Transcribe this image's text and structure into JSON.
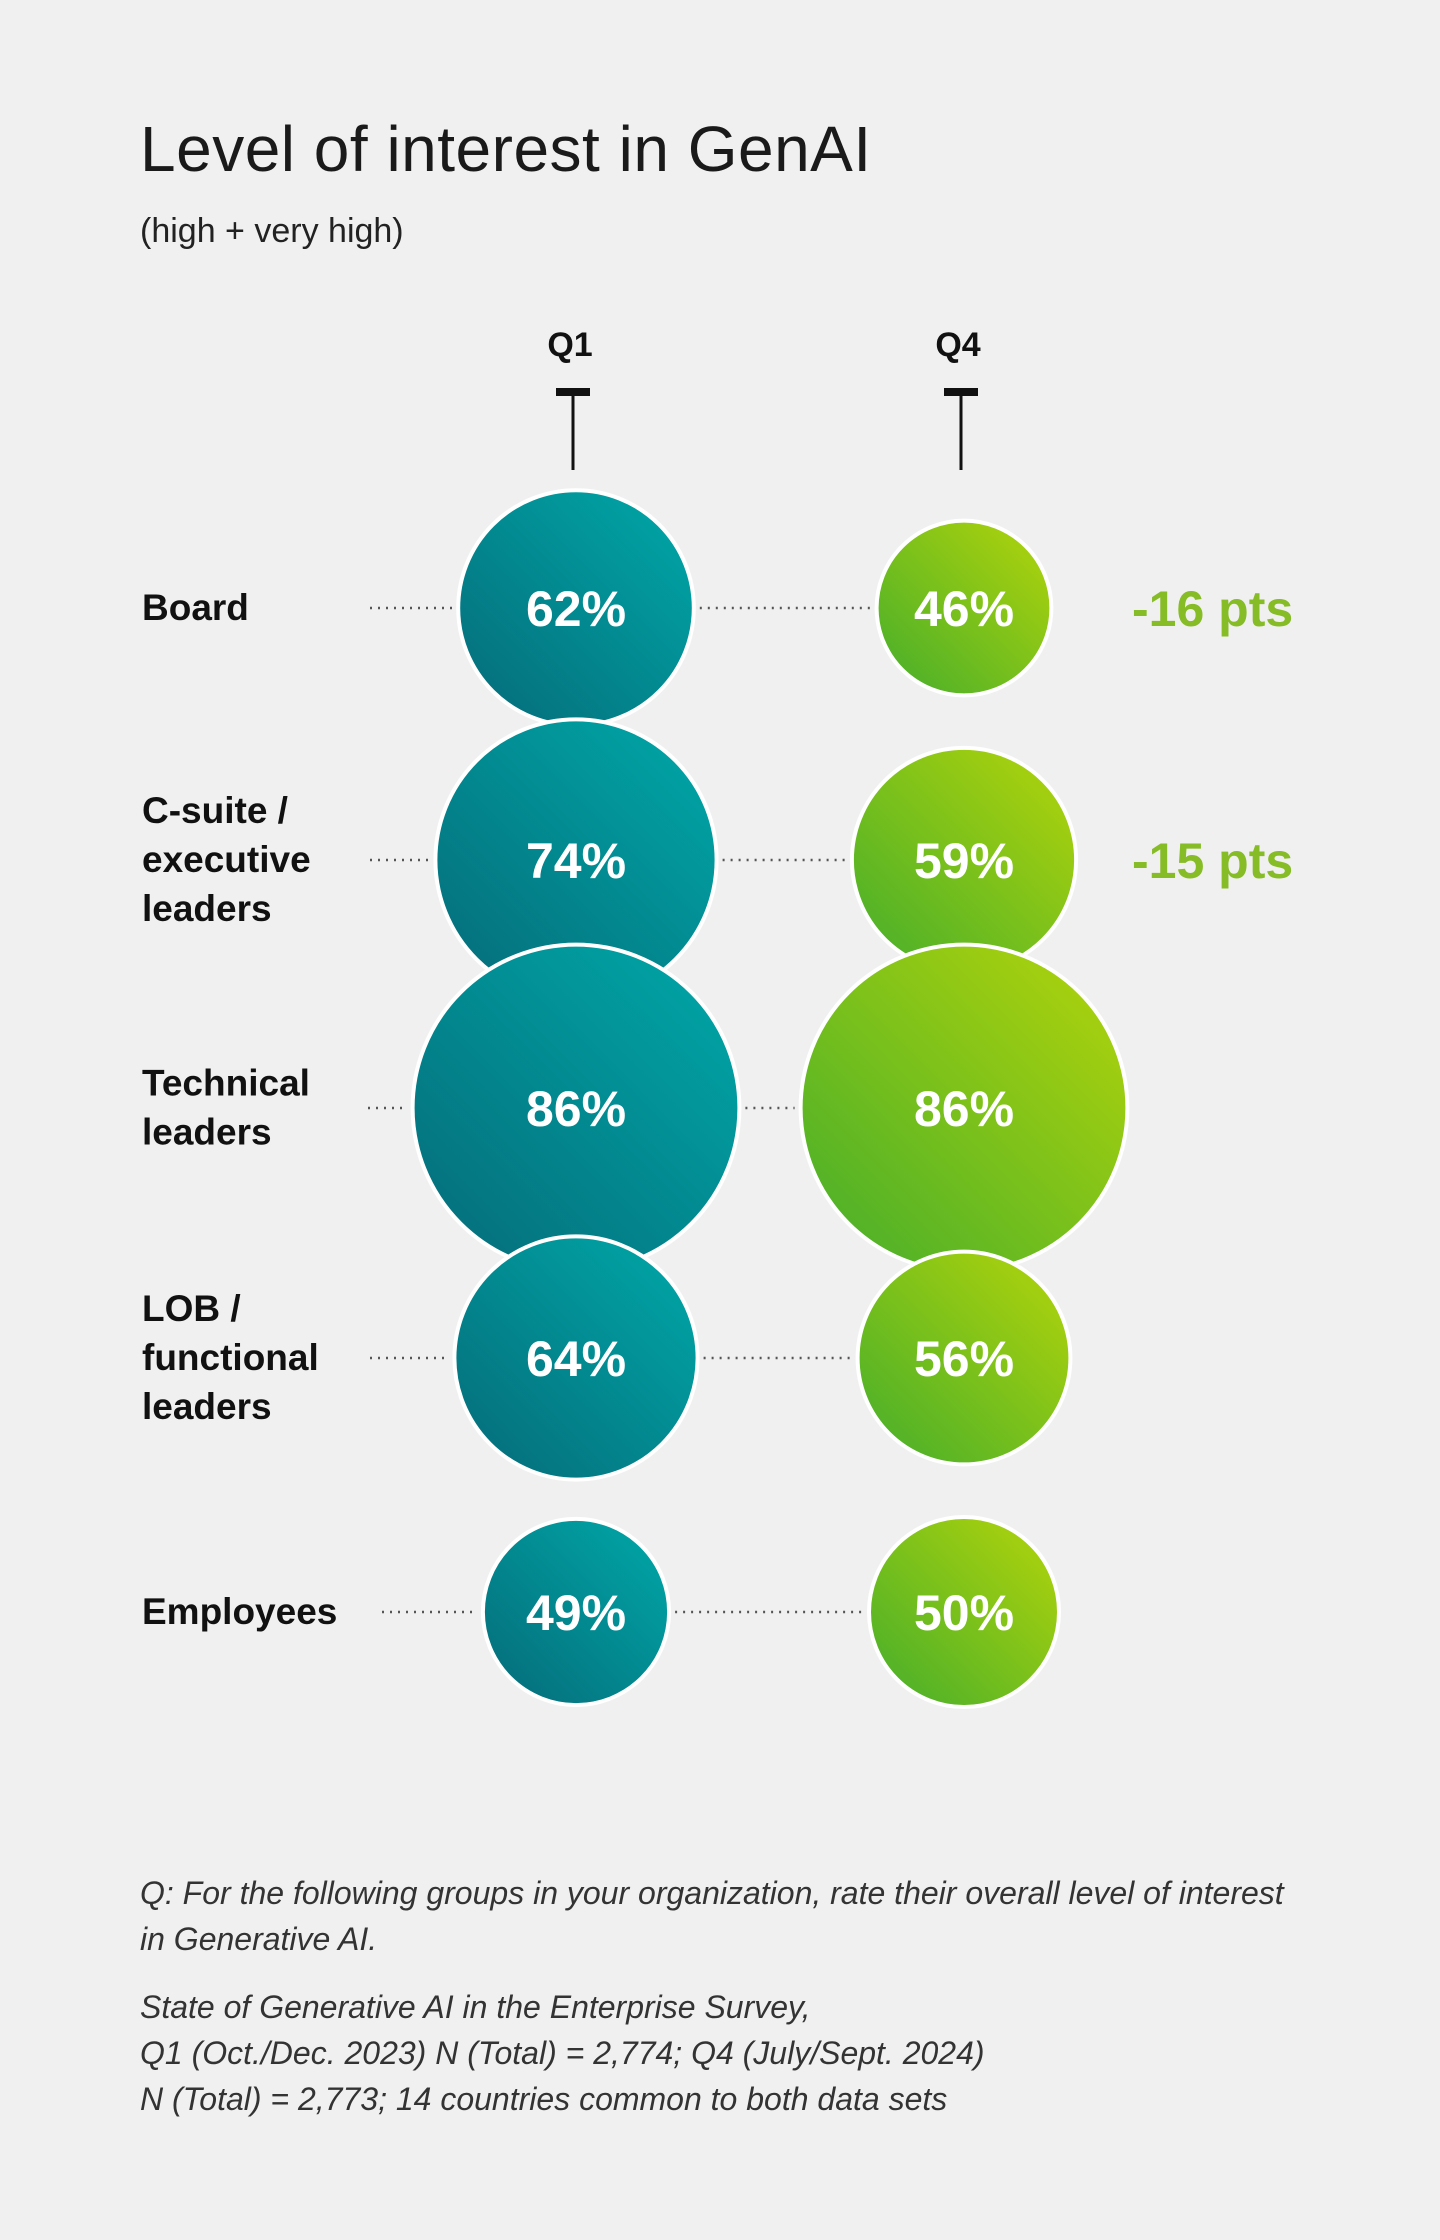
{
  "title": "Level of interest in GenAI",
  "subtitle": "(high + very high)",
  "colors": {
    "q1_light": "#00a9a9",
    "q1_dark": "#056a78",
    "q4_light": "#b5d50a",
    "q4_dark": "#43ad2c",
    "delta": "#86bc25",
    "text": "#111111"
  },
  "chart_data": {
    "type": "bubble",
    "title": "Level of interest in GenAI",
    "subtitle": "(high + very high)",
    "series": [
      {
        "name": "Q1",
        "values": [
          62,
          74,
          86,
          64,
          49
        ]
      },
      {
        "name": "Q4",
        "values": [
          46,
          59,
          86,
          56,
          50
        ]
      }
    ],
    "categories": [
      "Board",
      "C-suite / executive leaders",
      "Technical leaders",
      "LOB / functional leaders",
      "Employees"
    ],
    "category_lines": [
      [
        "Board"
      ],
      [
        "C-suite /",
        "executive",
        "leaders"
      ],
      [
        "Technical",
        "leaders"
      ],
      [
        "LOB /",
        "functional",
        "leaders"
      ],
      [
        "Employees"
      ]
    ],
    "value_labels": {
      "Q1": [
        "62%",
        "74%",
        "86%",
        "64%",
        "49%"
      ],
      "Q4": [
        "46%",
        "59%",
        "86%",
        "56%",
        "50%"
      ]
    },
    "deltas": [
      "-16 pts",
      "-15 pts",
      "",
      "",
      ""
    ]
  },
  "footnotes": {
    "question": [
      "Q: For the following groups in your organization, rate their overall level of interest",
      "in Generative AI."
    ],
    "source": [
      "State of Generative AI in the Enterprise Survey,",
      "Q1 (Oct./Dec. 2023) N (Total) = 2,774; Q4 (July/Sept. 2024)",
      "N (Total) = 2,773; 14 countries common to both data sets"
    ]
  }
}
